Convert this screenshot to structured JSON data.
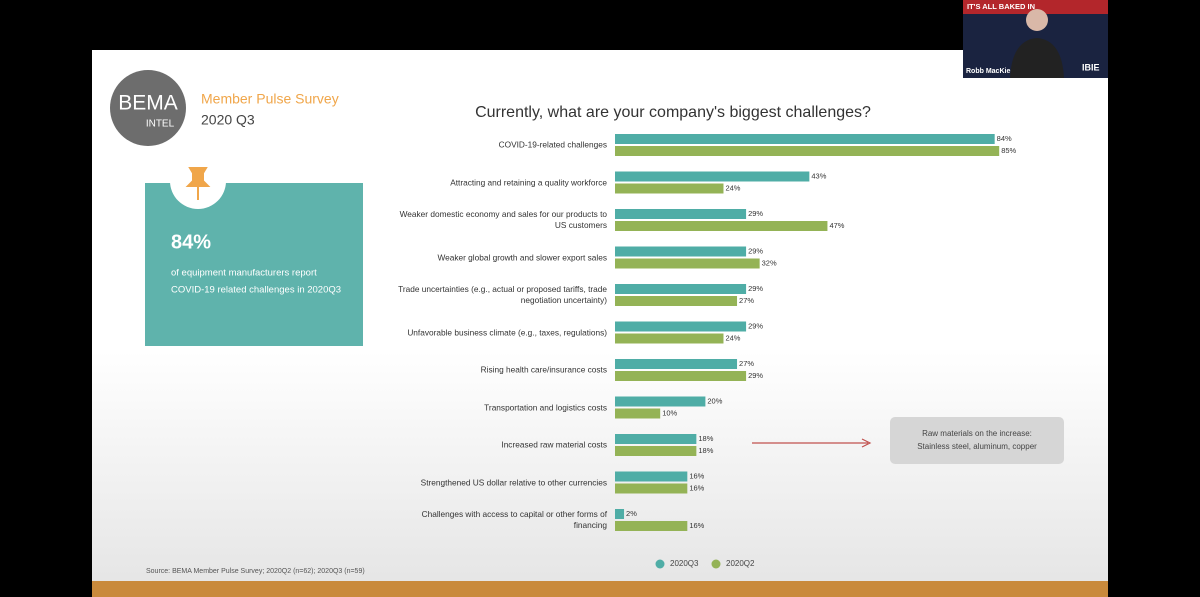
{
  "header": {
    "logo_main": "BEMA",
    "logo_sub": "INTEL",
    "survey": "Member Pulse Survey",
    "period": "2020 Q3"
  },
  "callout": {
    "stat": "84%",
    "lines": [
      "of equipment manufacturers report",
      "COVID-19 related challenges in 2020Q3"
    ]
  },
  "video": {
    "banner": "IT'S ALL BAKED IN",
    "name": "Robb MacKie",
    "badge": "IBIE"
  },
  "source": "Source: BEMA Member Pulse Survey; 2020Q2 (n=62); 2020Q3 (n=59)",
  "chart_data": {
    "type": "bar",
    "orientation": "horizontal",
    "title": "Currently, what are your company's biggest challenges?",
    "categories": [
      "COVID-19-related challenges",
      "Attracting and retaining a quality workforce",
      "Weaker domestic economy and sales for our products to US customers",
      "Weaker global growth and slower export sales",
      "Trade uncertainties (e.g., actual or proposed tariffs, trade negotiation uncertainty)",
      "Unfavorable business climate (e.g., taxes, regulations)",
      "Rising health care/insurance costs",
      "Transportation and logistics costs",
      "Increased raw material costs",
      "Strengthened US dollar relative to other currencies",
      "Challenges with access to capital or other forms of financing"
    ],
    "series": [
      {
        "name": "2020Q3",
        "color": "#4fada6",
        "values": [
          84,
          43,
          29,
          29,
          29,
          29,
          27,
          20,
          18,
          16,
          2
        ],
        "value_labels": [
          "84%",
          "43%",
          "29%",
          "29%",
          "29%",
          "29%",
          "27%",
          "20%",
          "18%",
          "16%",
          "2%"
        ]
      },
      {
        "name": "2020Q2",
        "color": "#94b356",
        "values": [
          85,
          24,
          47,
          32,
          27,
          24,
          29,
          10,
          18,
          16,
          16
        ],
        "value_labels": [
          "85%",
          "24%",
          "47%",
          "32%",
          "27%",
          "24%",
          "29%",
          "10%",
          "18%",
          "16%",
          "16%"
        ]
      }
    ],
    "annotation": [
      "Raw materials on the increase:",
      "Stainless steel, aluminum, copper"
    ]
  }
}
